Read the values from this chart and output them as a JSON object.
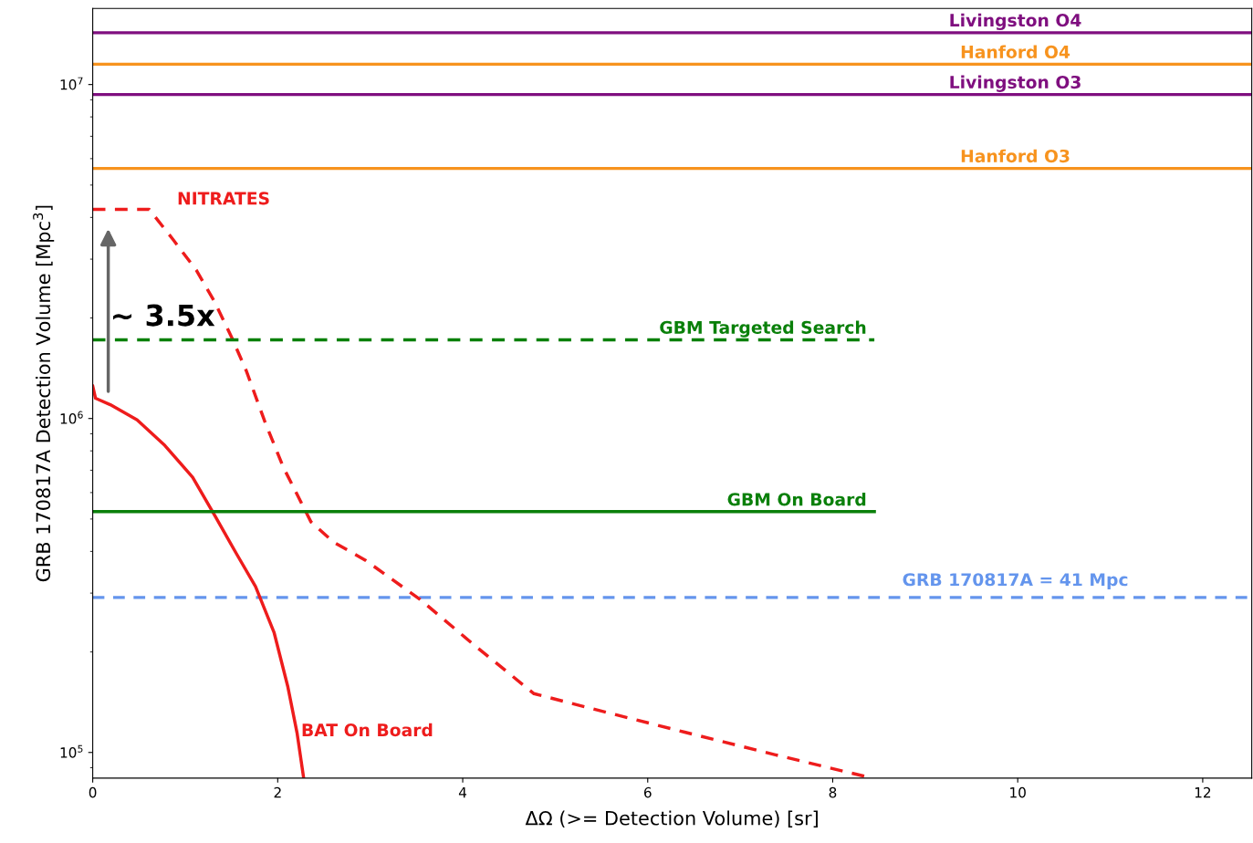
{
  "chart_data": {
    "type": "line",
    "xlabel": "ΔΩ (>= Detection Volume) [sr]",
    "ylabel": "GRB 170817A Detection Volume [Mpc$^{3}$]",
    "log": "y",
    "xlim": [
      0,
      12.53
    ],
    "ylim": [
      83800,
      16900000
    ],
    "xticks": [
      0,
      2,
      4,
      6,
      8,
      10,
      12
    ],
    "yticks": [
      {
        "value": 100000,
        "label": "10$^{5}$"
      },
      {
        "value": 1000000,
        "label": "10$^{6}$"
      },
      {
        "value": 10000000,
        "label": "10$^{7}$"
      }
    ],
    "grid": false,
    "legend": false,
    "series": [
      {
        "name": "NITRATES",
        "color": "#ee1c1c",
        "line_style": "dashed",
        "x": [
          0,
          0.61,
          0.87,
          1.12,
          1.32,
          1.51,
          1.66,
          1.86,
          2.06,
          2.36,
          2.6,
          2.95,
          3.54,
          4.13,
          4.77,
          5.41,
          6.4,
          7.38,
          8.41
        ],
        "values": [
          4230000,
          4230000,
          3430000,
          2780000,
          2230000,
          1730000,
          1390000,
          980000,
          715000,
          490000,
          427000,
          376000,
          287000,
          209000,
          150000,
          135000,
          115000,
          98400,
          84000
        ]
      },
      {
        "name": "BAT On Board",
        "color": "#ee1c1c",
        "line_style": "solid",
        "x": [
          0,
          0.03,
          0.19,
          0.48,
          0.78,
          1.08,
          1.32,
          1.56,
          1.76,
          1.96,
          2.11,
          2.21,
          2.28
        ],
        "values": [
          1250000,
          1150000,
          1100000,
          990000,
          830000,
          667000,
          512000,
          391000,
          314000,
          229000,
          157000,
          114000,
          84000
        ]
      },
      {
        "name": "GBM Targeted Search",
        "color": "#0a800a",
        "line_style": "dashed",
        "x": [
          0,
          8.45
        ],
        "values": [
          1720000,
          1720000
        ]
      },
      {
        "name": "GBM On Board",
        "color": "#0a800a",
        "line_style": "solid",
        "x": [
          0,
          8.45
        ],
        "values": [
          526000,
          526000
        ]
      }
    ],
    "ref_lines": [
      {
        "axis": "y",
        "value": 14300000,
        "label": "Livingston O4",
        "color": "#7f0f7f",
        "line_style": "solid"
      },
      {
        "axis": "y",
        "value": 11500000,
        "label": "Hanford O4",
        "color": "#f7931e",
        "line_style": "solid"
      },
      {
        "axis": "y",
        "value": 9330000,
        "label": "Livingston O3",
        "color": "#7f0f7f",
        "line_style": "solid"
      },
      {
        "axis": "y",
        "value": 5610000,
        "label": "Hanford O3",
        "color": "#f7931e",
        "line_style": "solid"
      },
      {
        "axis": "y",
        "value": 291000,
        "color": "#6495ed",
        "line_style": "dashed"
      }
    ],
    "annotations": [
      "~ 3.5x",
      "GRB 170817A = 41 Mpc"
    ]
  }
}
